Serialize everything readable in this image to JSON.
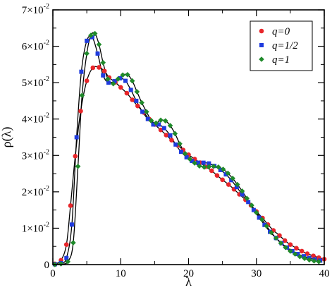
{
  "chart_data": {
    "type": "line",
    "xlabel": "λ",
    "ylabel": "ρ(λ)",
    "xlim": [
      0,
      40
    ],
    "ylim": [
      0,
      0.07
    ],
    "x_ticks": [
      0,
      10,
      20,
      30,
      40
    ],
    "x_tick_labels": [
      "0",
      "10",
      "20",
      "30",
      "40"
    ],
    "y_ticks": [
      0,
      0.01,
      0.02,
      0.03,
      0.04,
      0.05,
      0.06,
      0.07
    ],
    "y_tick_labels": [
      {
        "mantissa": "0",
        "exp": ""
      },
      {
        "mantissa": "1×10",
        "exp": "-2"
      },
      {
        "mantissa": "2×10",
        "exp": "-2"
      },
      {
        "mantissa": "3×10",
        "exp": "-2"
      },
      {
        "mantissa": "4×10",
        "exp": "-2"
      },
      {
        "mantissa": "5×10",
        "exp": "-2"
      },
      {
        "mantissa": "6×10",
        "exp": "-2"
      },
      {
        "mantissa": "7×10",
        "exp": "-2"
      }
    ],
    "grid": false,
    "legend_position": "top-right",
    "series": [
      {
        "name": "q=0",
        "color": "#e8262a",
        "marker": "circle",
        "x": [
          0.3,
          1.2,
          2.0,
          2.6,
          3.3,
          4.1,
          5.0,
          5.9,
          6.8,
          7.6,
          8.3,
          9.2,
          10.0,
          10.9,
          11.7,
          12.5,
          13.4,
          14.2,
          15.0,
          15.9,
          16.7,
          17.5,
          18.4,
          19.2,
          20.0,
          20.9,
          21.7,
          22.5,
          23.4,
          24.2,
          25.0,
          25.9,
          26.7,
          27.5,
          28.4,
          29.2,
          30.0,
          30.9,
          31.7,
          32.5,
          33.4,
          34.2,
          35.0,
          35.9,
          36.7,
          37.5,
          38.4,
          39.2,
          40.0
        ],
        "y": [
          0.0002,
          0.0012,
          0.0055,
          0.0162,
          0.0298,
          0.0422,
          0.0505,
          0.0541,
          0.0542,
          0.0532,
          0.0514,
          0.0501,
          0.0487,
          0.0471,
          0.0453,
          0.0436,
          0.0418,
          0.04,
          0.0385,
          0.037,
          0.0356,
          0.0342,
          0.0328,
          0.0315,
          0.0302,
          0.029,
          0.028,
          0.0269,
          0.0258,
          0.0245,
          0.0233,
          0.022,
          0.0207,
          0.0193,
          0.0178,
          0.0163,
          0.0146,
          0.0128,
          0.011,
          0.0094,
          0.008,
          0.0066,
          0.0055,
          0.0045,
          0.0037,
          0.003,
          0.0024,
          0.0019,
          0.0015
        ]
      },
      {
        "name": "q=1/2",
        "color": "#1f3bde",
        "marker": "square",
        "x": [
          0.3,
          1.2,
          2.0,
          2.8,
          3.5,
          4.2,
          5.0,
          5.8,
          6.6,
          7.4,
          8.2,
          9.1,
          9.9,
          10.7,
          11.5,
          12.3,
          13.2,
          14.0,
          14.8,
          15.6,
          16.4,
          17.3,
          18.1,
          18.9,
          19.7,
          20.5,
          21.4,
          22.2,
          23.0,
          23.8,
          24.7,
          25.5,
          26.3,
          27.1,
          27.9,
          28.8,
          29.6,
          30.4,
          31.2,
          32.0,
          32.9,
          33.7,
          34.5,
          35.3,
          36.1,
          37.0,
          37.8,
          38.6,
          39.4
        ],
        "y": [
          0.0001,
          0.0004,
          0.0018,
          0.011,
          0.035,
          0.053,
          0.0615,
          0.0625,
          0.058,
          0.052,
          0.05,
          0.0504,
          0.0512,
          0.0505,
          0.048,
          0.045,
          0.042,
          0.04,
          0.0385,
          0.0385,
          0.0375,
          0.0355,
          0.033,
          0.031,
          0.0295,
          0.0285,
          0.028,
          0.028,
          0.0278,
          0.0271,
          0.026,
          0.0248,
          0.0232,
          0.0213,
          0.0193,
          0.0172,
          0.015,
          0.0129,
          0.0109,
          0.009,
          0.0073,
          0.0059,
          0.0047,
          0.0037,
          0.0029,
          0.0023,
          0.0018,
          0.0014,
          0.0011
        ]
      },
      {
        "name": "q=1",
        "color": "#1f8a2a",
        "marker": "diamond",
        "x": [
          0.3,
          1.2,
          2.2,
          3.0,
          3.7,
          4.3,
          5.0,
          5.6,
          6.2,
          6.8,
          7.4,
          8.1,
          8.9,
          9.6,
          10.3,
          11.0,
          11.7,
          12.4,
          13.1,
          13.8,
          14.5,
          15.2,
          15.9,
          16.6,
          17.3,
          18.0,
          18.7,
          19.5,
          20.2,
          20.9,
          21.6,
          22.3,
          23.0,
          23.7,
          24.4,
          25.1,
          25.8,
          26.5,
          27.2,
          27.9,
          28.6,
          29.3,
          30.0,
          30.8,
          31.5,
          32.2,
          32.9,
          33.6,
          34.3,
          35.0,
          35.7,
          36.4,
          37.1,
          37.8,
          38.5,
          39.2
        ],
        "y": [
          0.0,
          0.0002,
          0.0008,
          0.006,
          0.027,
          0.0465,
          0.058,
          0.063,
          0.0635,
          0.0605,
          0.0555,
          0.051,
          0.0497,
          0.051,
          0.0521,
          0.0522,
          0.0505,
          0.0475,
          0.0445,
          0.042,
          0.0396,
          0.0389,
          0.0397,
          0.0395,
          0.0382,
          0.036,
          0.0332,
          0.0305,
          0.029,
          0.0279,
          0.0271,
          0.0268,
          0.0269,
          0.027,
          0.0268,
          0.0262,
          0.0251,
          0.0237,
          0.022,
          0.0202,
          0.0182,
          0.0163,
          0.0143,
          0.0124,
          0.0106,
          0.0088,
          0.0073,
          0.0059,
          0.0047,
          0.0037,
          0.0029,
          0.0022,
          0.0017,
          0.0013,
          0.001,
          0.0008
        ]
      }
    ]
  }
}
